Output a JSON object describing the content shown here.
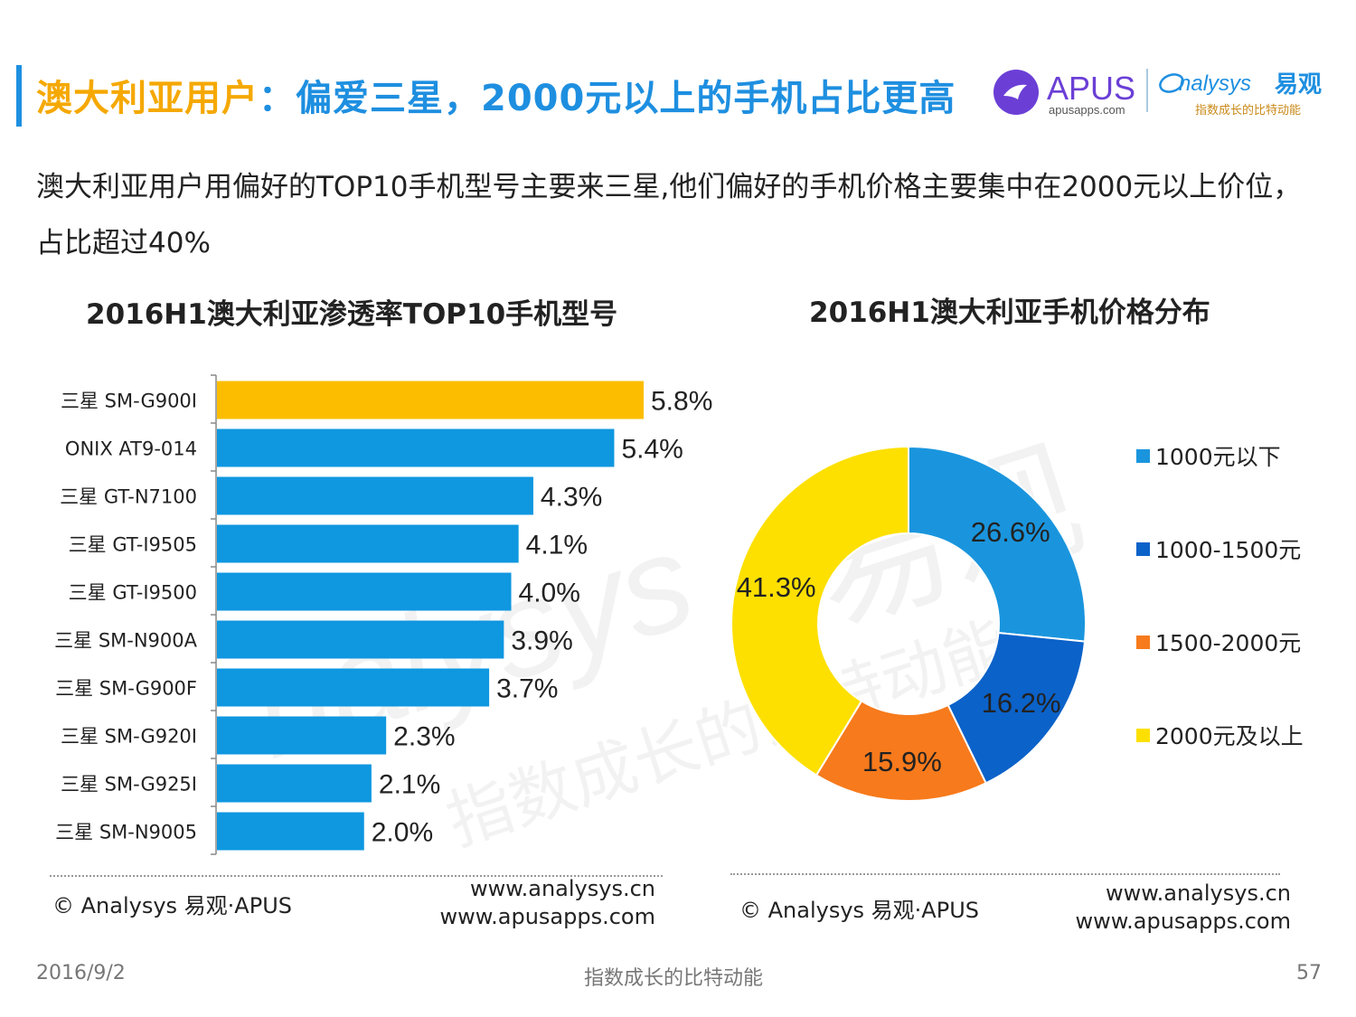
{
  "colors": {
    "accent": "#1e8fe0",
    "title_orange": "#f5a800",
    "title_blue": "#1e8fe0",
    "bar_highlight": "#fcbd00",
    "bar_default": "#0f97e0",
    "apus_purple": "#6b3fd6"
  },
  "header": {
    "title_highlight": "澳大利亚用户",
    "title_rest": "：偏爱三星，2000元以上的手机占比更高",
    "logo_apus": {
      "name": "APUS",
      "domain": "apusapps.com"
    },
    "logo_analysys": {
      "name": "nalysys",
      "cn": "易观",
      "slogan": "指数成长的比特动能"
    }
  },
  "subtitle": "澳大利亚用户用偏好的TOP10手机型号主要来三星,他们偏好的手机价格主要集中在2000元以上价位，占比超过40%",
  "chart_data": [
    {
      "type": "bar",
      "orientation": "horizontal",
      "title": "2016H1澳大利亚渗透率TOP10手机型号",
      "categories": [
        "三星 SM-G900I",
        "ONIX AT9-014",
        "三星 GT-N7100",
        "三星 GT-I9505",
        "三星 GT-I9500",
        "三星 SM-N900A",
        "三星 SM-G900F",
        "三星 SM-G920I",
        "三星 SM-G925I",
        "三星 SM-N9005"
      ],
      "values": [
        5.8,
        5.4,
        4.3,
        4.1,
        4.0,
        3.9,
        3.7,
        2.3,
        2.1,
        2.0
      ],
      "labels": [
        "5.8%",
        "5.4%",
        "4.3%",
        "4.1%",
        "4.0%",
        "3.9%",
        "3.7%",
        "2.3%",
        "2.1%",
        "2.0%"
      ],
      "xlim": [
        0,
        7.5
      ]
    },
    {
      "type": "pie",
      "donut": true,
      "title": "2016H1澳大利亚手机价格分布",
      "categories": [
        "1000元以下",
        "1000-1500元",
        "1500-2000元",
        "2000元及以上"
      ],
      "values": [
        26.6,
        16.2,
        15.9,
        41.3
      ],
      "labels": [
        "26.6%",
        "16.2%",
        "15.9%",
        "41.3%"
      ],
      "colors": [
        "#1a95dd",
        "#0b62c9",
        "#f77a1c",
        "#fde000"
      ],
      "legend": "right"
    }
  ],
  "watermark": {
    "brand": "nalysys",
    "cn": "易观",
    "slogan": "指数成长的比特动能"
  },
  "footer": {
    "copyright": "© Analysys 易观·APUS",
    "url1": "www.analysys.cn",
    "url2": "www.apusapps.com",
    "date": "2016/9/2",
    "slogan": "指数成长的比特动能",
    "page": "57"
  }
}
